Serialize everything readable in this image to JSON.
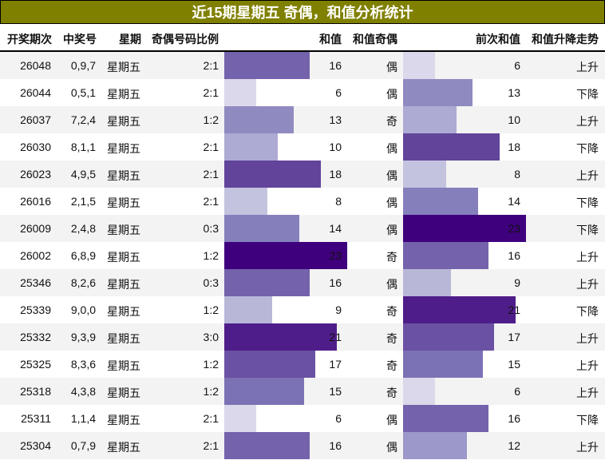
{
  "title": "近15期星期五 奇偶，和值分析统计",
  "columns": {
    "period": "开奖期次",
    "numbers": "中奖号",
    "weekday": "星期",
    "ratio": "奇偶号码比例",
    "sum": "和值",
    "sum_parity": "和值奇偶",
    "prev_sum": "前次和值",
    "trend": "和值升降走势"
  },
  "rows": [
    {
      "period": "26048",
      "numbers": "0,9,7",
      "weekday": "星期五",
      "ratio": "2:1",
      "sum": "16",
      "parity": "偶",
      "prev": "6",
      "trend": "上升"
    },
    {
      "period": "26044",
      "numbers": "0,5,1",
      "weekday": "星期五",
      "ratio": "2:1",
      "sum": "6",
      "parity": "偶",
      "prev": "13",
      "trend": "下降"
    },
    {
      "period": "26037",
      "numbers": "7,2,4",
      "weekday": "星期五",
      "ratio": "1:2",
      "sum": "13",
      "parity": "奇",
      "prev": "10",
      "trend": "上升"
    },
    {
      "period": "26030",
      "numbers": "8,1,1",
      "weekday": "星期五",
      "ratio": "2:1",
      "sum": "10",
      "parity": "偶",
      "prev": "18",
      "trend": "下降"
    },
    {
      "period": "26023",
      "numbers": "4,9,5",
      "weekday": "星期五",
      "ratio": "2:1",
      "sum": "18",
      "parity": "偶",
      "prev": "8",
      "trend": "上升"
    },
    {
      "period": "26016",
      "numbers": "2,1,5",
      "weekday": "星期五",
      "ratio": "2:1",
      "sum": "8",
      "parity": "偶",
      "prev": "14",
      "trend": "下降"
    },
    {
      "period": "26009",
      "numbers": "2,4,8",
      "weekday": "星期五",
      "ratio": "0:3",
      "sum": "14",
      "parity": "偶",
      "prev": "23",
      "trend": "下降"
    },
    {
      "period": "26002",
      "numbers": "6,8,9",
      "weekday": "星期五",
      "ratio": "1:2",
      "sum": "23",
      "parity": "奇",
      "prev": "16",
      "trend": "上升"
    },
    {
      "period": "25346",
      "numbers": "8,2,6",
      "weekday": "星期五",
      "ratio": "0:3",
      "sum": "16",
      "parity": "偶",
      "prev": "9",
      "trend": "上升"
    },
    {
      "period": "25339",
      "numbers": "9,0,0",
      "weekday": "星期五",
      "ratio": "1:2",
      "sum": "9",
      "parity": "奇",
      "prev": "21",
      "trend": "下降"
    },
    {
      "period": "25332",
      "numbers": "9,3,9",
      "weekday": "星期五",
      "ratio": "3:0",
      "sum": "21",
      "parity": "奇",
      "prev": "17",
      "trend": "上升"
    },
    {
      "period": "25325",
      "numbers": "8,3,6",
      "weekday": "星期五",
      "ratio": "1:2",
      "sum": "17",
      "parity": "奇",
      "prev": "15",
      "trend": "上升"
    },
    {
      "period": "25318",
      "numbers": "4,3,8",
      "weekday": "星期五",
      "ratio": "1:2",
      "sum": "15",
      "parity": "奇",
      "prev": "6",
      "trend": "上升"
    },
    {
      "period": "25311",
      "numbers": "1,1,4",
      "weekday": "星期五",
      "ratio": "2:1",
      "sum": "6",
      "parity": "偶",
      "prev": "16",
      "trend": "下降"
    },
    {
      "period": "25304",
      "numbers": "0,7,9",
      "weekday": "星期五",
      "ratio": "2:1",
      "sum": "16",
      "parity": "偶",
      "prev": "12",
      "trend": "上升"
    }
  ],
  "colors": {
    "title_bg": "#808000",
    "title_text": "#ffffff",
    "row_alt": "#f3f3f3",
    "bar_scale": {
      "6": "#dad8ea",
      "8": "#c3c3df",
      "9": "#b8b7d8",
      "10": "#adaad3",
      "12": "#9c98c9",
      "13": "#8f8bc1",
      "14": "#8580bc",
      "15": "#7b72b5",
      "16": "#7462ac",
      "17": "#6b51a3",
      "18": "#62449b",
      "21": "#4f1d8a",
      "23": "#3f007d"
    }
  },
  "chart_data": {
    "type": "table",
    "title": "近15期星期五 奇偶，和值分析统计",
    "categories": [
      "26048",
      "26044",
      "26037",
      "26030",
      "26023",
      "26016",
      "26009",
      "26002",
      "25346",
      "25339",
      "25332",
      "25325",
      "25318",
      "25311",
      "25304"
    ],
    "series": [
      {
        "name": "和值",
        "values": [
          16,
          6,
          13,
          10,
          18,
          8,
          14,
          23,
          16,
          9,
          21,
          17,
          15,
          6,
          16
        ]
      },
      {
        "name": "前次和值",
        "values": [
          6,
          13,
          10,
          18,
          8,
          14,
          23,
          16,
          9,
          21,
          17,
          15,
          6,
          16,
          12
        ]
      }
    ],
    "xlabel": "开奖期次",
    "ylabel": "和值",
    "ylim": [
      0,
      23
    ]
  }
}
